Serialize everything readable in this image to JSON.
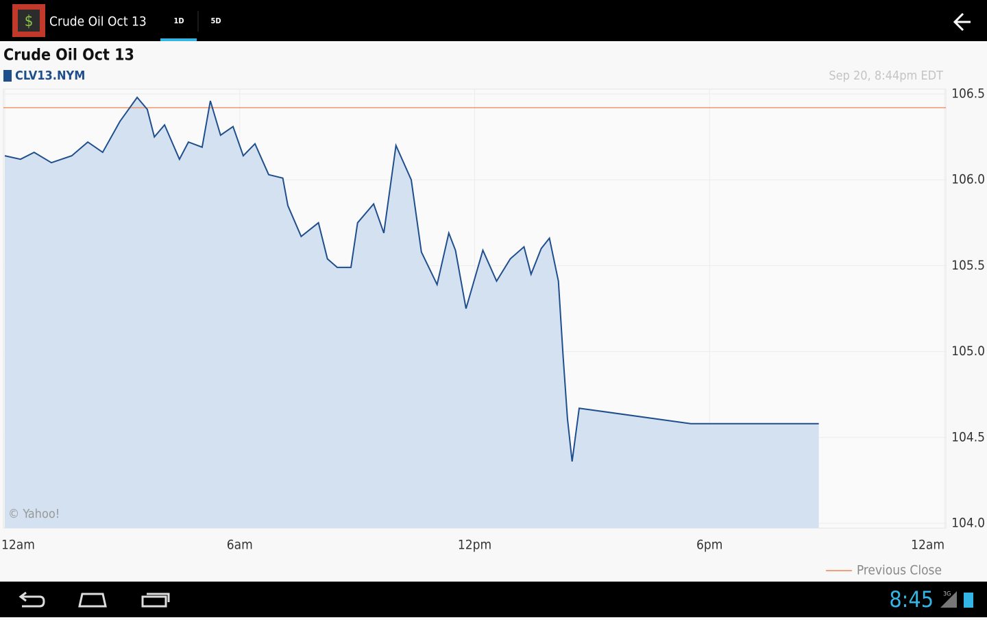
{
  "app_bar": {
    "title": "Crude Oil Oct 13",
    "tabs": [
      "1D",
      "5D"
    ]
  },
  "chart_data": {
    "type": "line",
    "title": "Crude Oil Oct 13",
    "timestamp": "Sep 20, 8:44pm EDT",
    "credit": "© Yahoo!",
    "x": [
      0,
      0.4,
      0.75,
      1.19,
      1.71,
      2.12,
      2.5,
      2.94,
      3.38,
      3.64,
      3.82,
      4.08,
      4.46,
      4.69,
      5.04,
      5.25,
      5.51,
      5.83,
      6.09,
      6.39,
      6.74,
      7.1,
      7.23,
      7.57,
      8.01,
      8.24,
      8.49,
      8.84,
      9.01,
      9.42,
      9.68,
      9.99,
      10.38,
      10.64,
      11.04,
      11.34,
      11.51,
      11.78,
      12.21,
      12.56,
      12.91,
      13.26,
      13.44,
      13.7,
      13.91,
      14.14,
      14.26,
      14.37,
      14.49,
      14.67,
      17.52,
      20.79
    ],
    "series": [
      {
        "name": "CLV13.NYM",
        "color": "#1f4e8c",
        "fill": "#d3e1f0",
        "values": [
          106.14,
          106.12,
          106.16,
          106.1,
          106.14,
          106.22,
          106.16,
          106.34,
          106.48,
          106.41,
          106.25,
          106.32,
          106.12,
          106.22,
          106.19,
          106.46,
          106.26,
          106.31,
          106.14,
          106.21,
          106.03,
          106.01,
          105.85,
          105.67,
          105.75,
          105.54,
          105.49,
          105.49,
          105.75,
          105.86,
          105.69,
          106.2,
          106.0,
          105.58,
          105.39,
          105.69,
          105.59,
          105.25,
          105.59,
          105.41,
          105.54,
          105.61,
          105.45,
          105.6,
          105.66,
          105.41,
          104.97,
          104.61,
          104.36,
          104.67,
          104.58,
          104.58
        ]
      }
    ],
    "reference_line": {
      "name": "Previous Close",
      "value": 106.42,
      "color": "#f08050"
    },
    "xlim": [
      0,
      24
    ],
    "xticks": [
      {
        "value": 0,
        "label": "12am"
      },
      {
        "value": 6,
        "label": "6am"
      },
      {
        "value": 12,
        "label": "12pm"
      },
      {
        "value": 18,
        "label": "6pm"
      },
      {
        "value": 24,
        "label": "12am"
      }
    ],
    "ylim": [
      104,
      106.5
    ],
    "yticks": [
      106.5,
      {
        "value": 106,
        "label": "106.0"
      },
      105.5,
      {
        "value": 105,
        "label": "105.0"
      },
      104.5,
      {
        "value": 104,
        "label": "104.0"
      }
    ],
    "grid": true
  },
  "status_bar": {
    "time": "8:45",
    "network": "3G"
  }
}
